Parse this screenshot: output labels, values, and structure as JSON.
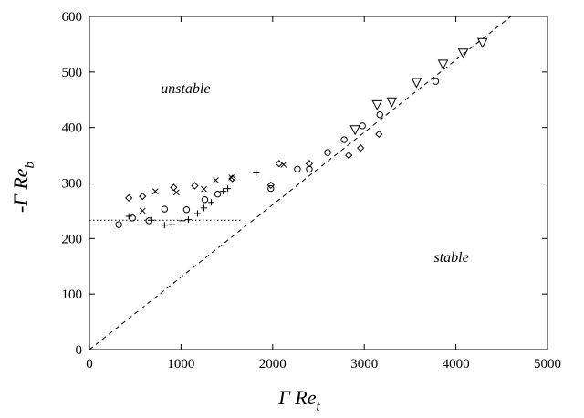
{
  "chart_data": {
    "type": "scatter",
    "title": "",
    "xlabel": {
      "main": "Γ Re",
      "sub": "t"
    },
    "ylabel": {
      "main": "-Γ Re",
      "sub": "b"
    },
    "xlim": [
      0,
      5000
    ],
    "ylim": [
      0,
      600
    ],
    "xticks": [
      "0",
      "1000",
      "2000",
      "3000",
      "4000",
      "5000"
    ],
    "yticks": [
      "0",
      "100",
      "200",
      "300",
      "400",
      "500",
      "600"
    ],
    "grid": false,
    "legend": "none",
    "annotations": [
      {
        "text": "unstable",
        "x": 1050,
        "y": 462
      },
      {
        "text": "stable",
        "x": 3950,
        "y": 158
      }
    ],
    "lines": [
      {
        "style": "dashed",
        "points": [
          [
            0,
            0
          ],
          [
            4600,
            600
          ]
        ]
      },
      {
        "style": "dotted",
        "points": [
          [
            0,
            233
          ],
          [
            1650,
            233
          ]
        ]
      }
    ],
    "series": [
      {
        "marker": "circle",
        "points": [
          [
            320,
            225
          ],
          [
            470,
            237
          ],
          [
            650,
            232
          ],
          [
            820,
            253
          ],
          [
            1060,
            252
          ],
          [
            1260,
            270
          ],
          [
            1400,
            280
          ],
          [
            1980,
            290
          ],
          [
            2270,
            325
          ],
          [
            2400,
            325
          ],
          [
            2600,
            355
          ],
          [
            2780,
            378
          ],
          [
            2980,
            403
          ],
          [
            3170,
            423
          ],
          [
            3780,
            483
          ]
        ]
      },
      {
        "marker": "diamond",
        "points": [
          [
            430,
            273
          ],
          [
            580,
            276
          ],
          [
            920,
            292
          ],
          [
            1150,
            295
          ],
          [
            1560,
            308
          ],
          [
            1980,
            296
          ],
          [
            2070,
            335
          ],
          [
            2400,
            335
          ],
          [
            2830,
            350
          ],
          [
            2960,
            363
          ],
          [
            3160,
            388
          ]
        ]
      },
      {
        "marker": "x",
        "points": [
          [
            580,
            250
          ],
          [
            720,
            285
          ],
          [
            950,
            283
          ],
          [
            1250,
            289
          ],
          [
            1380,
            305
          ],
          [
            1550,
            310
          ],
          [
            2120,
            333
          ]
        ]
      },
      {
        "marker": "plus",
        "points": [
          [
            430,
            240
          ],
          [
            680,
            233
          ],
          [
            820,
            224
          ],
          [
            900,
            225
          ],
          [
            1010,
            232
          ],
          [
            1080,
            234
          ],
          [
            1180,
            245
          ],
          [
            1250,
            255
          ],
          [
            1330,
            265
          ],
          [
            1460,
            285
          ],
          [
            1510,
            290
          ],
          [
            1820,
            318
          ]
        ]
      },
      {
        "marker": "triangle-down",
        "points": [
          [
            2900,
            395
          ],
          [
            3140,
            440
          ],
          [
            3300,
            445
          ],
          [
            3570,
            480
          ],
          [
            3860,
            513
          ],
          [
            4080,
            533
          ],
          [
            4290,
            552
          ]
        ]
      }
    ]
  }
}
